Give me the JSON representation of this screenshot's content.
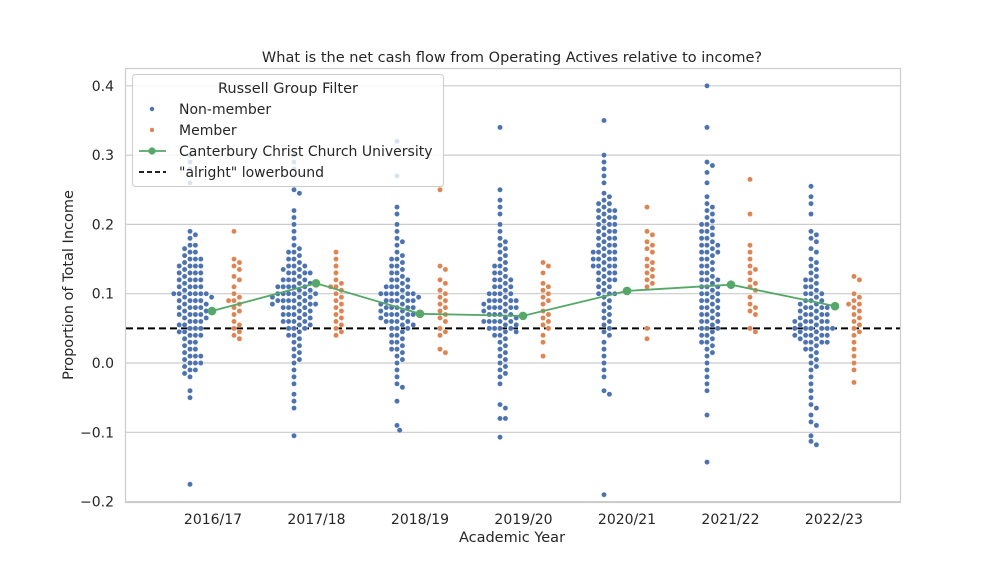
{
  "chart_data": {
    "type": "scatter",
    "subtype": "swarm",
    "title": "What is the net cash flow from Operating Actives relative to income?",
    "xlabel": "Academic Year",
    "ylabel": "Proportion of Total Income",
    "categories": [
      "2016/17",
      "2017/18",
      "2018/19",
      "2019/20",
      "2020/21",
      "2021/22",
      "2022/23"
    ],
    "ylim": [
      -0.2,
      0.42
    ],
    "yticks": [
      -0.2,
      -0.1,
      0.0,
      0.1,
      0.2,
      0.3,
      0.4
    ],
    "ytick_labels": [
      "−0.2",
      "−0.1",
      "0.0",
      "0.1",
      "0.2",
      "0.3",
      "0.4"
    ],
    "grid": true,
    "legend": {
      "title": "Russell Group Filter",
      "position": "upper left",
      "entries": [
        "Non-member",
        "Member",
        "Canterbury Christ Church University",
        "\"alright\" lowerbound"
      ]
    },
    "colors": {
      "non_member": "#4c72b0",
      "member": "#dd8452",
      "cccu": "#55a868",
      "lowerbound": "#000000",
      "grid": "#cccccc",
      "frame": "#cccccc"
    },
    "series": [
      {
        "name": "Canterbury Christ Church University",
        "type": "line",
        "values": [
          0.075,
          0.115,
          0.071,
          0.068,
          0.104,
          0.113,
          0.082
        ]
      },
      {
        "name": "\"alright\" lowerbound",
        "type": "hline",
        "value": 0.05
      },
      {
        "name": "Non-member",
        "type": "swarm",
        "values_by_year": [
          [
            0.3,
            0.29,
            0.28,
            0.26,
            0.19,
            0.185,
            0.18,
            0.17,
            0.165,
            0.16,
            0.155,
            0.15,
            0.15,
            0.145,
            0.14,
            0.14,
            0.135,
            0.13,
            0.13,
            0.125,
            0.12,
            0.12,
            0.115,
            0.11,
            0.11,
            0.105,
            0.1,
            0.1,
            0.1,
            0.1,
            0.095,
            0.095,
            0.09,
            0.09,
            0.085,
            0.085,
            0.08,
            0.08,
            0.075,
            0.075,
            0.07,
            0.07,
            0.065,
            0.065,
            0.06,
            0.06,
            0.055,
            0.055,
            0.05,
            0.05,
            0.045,
            0.045,
            0.04,
            0.04,
            0.035,
            0.03,
            0.025,
            0.02,
            0.015,
            0.01,
            0.005,
            0.0,
            -0.005,
            -0.01,
            -0.015,
            -0.02,
            -0.04,
            -0.05,
            -0.175,
            0.07,
            0.08,
            0.09,
            0.1,
            0.11,
            0.12,
            0.13,
            0.14,
            0.15,
            0.16,
            0.17,
            0.0,
            0.01,
            0.02,
            0.03,
            0.04,
            0.05,
            0.06,
            0.07,
            0.08,
            0.09,
            0.1,
            0.11,
            0.12,
            0.13,
            0.14,
            -0.01,
            0.0,
            0.01
          ],
          [
            0.3,
            0.29,
            0.28,
            0.25,
            0.245,
            0.22,
            0.21,
            0.2,
            0.19,
            0.18,
            0.17,
            0.165,
            0.16,
            0.155,
            0.15,
            0.145,
            0.14,
            0.14,
            0.135,
            0.135,
            0.13,
            0.13,
            0.125,
            0.12,
            0.12,
            0.115,
            0.11,
            0.11,
            0.105,
            0.1,
            0.1,
            0.1,
            0.095,
            0.095,
            0.09,
            0.09,
            0.085,
            0.085,
            0.085,
            0.08,
            0.08,
            0.075,
            0.075,
            0.07,
            0.07,
            0.065,
            0.065,
            0.06,
            0.06,
            0.055,
            0.055,
            0.05,
            0.05,
            0.045,
            0.04,
            0.035,
            0.03,
            0.025,
            0.02,
            0.015,
            0.01,
            0.005,
            0.0,
            -0.01,
            -0.02,
            -0.03,
            -0.045,
            -0.055,
            -0.065,
            -0.105,
            0.07,
            0.08,
            0.09,
            0.1,
            0.11,
            0.12,
            0.13,
            0.14,
            0.15,
            0.16,
            0.06,
            0.07,
            0.08,
            0.09,
            0.1,
            0.11,
            0.12,
            0.13,
            0.09,
            0.1,
            0.11,
            0.04,
            0.05,
            0.06,
            0.085,
            0.095,
            0.105,
            0.115
          ],
          [
            0.32,
            0.27,
            0.225,
            0.215,
            0.2,
            0.19,
            0.18,
            0.175,
            0.17,
            0.16,
            0.155,
            0.15,
            0.145,
            0.14,
            0.135,
            0.13,
            0.125,
            0.12,
            0.12,
            0.115,
            0.11,
            0.11,
            0.105,
            0.1,
            0.1,
            0.1,
            0.095,
            0.095,
            0.09,
            0.09,
            0.085,
            0.085,
            0.08,
            0.08,
            0.075,
            0.075,
            0.07,
            0.07,
            0.065,
            0.065,
            0.06,
            0.06,
            0.055,
            0.055,
            0.05,
            0.05,
            0.045,
            0.04,
            0.035,
            0.03,
            0.025,
            0.02,
            0.015,
            0.01,
            0.005,
            0.0,
            -0.01,
            -0.02,
            -0.03,
            -0.035,
            -0.055,
            -0.09,
            -0.097,
            0.06,
            0.07,
            0.08,
            0.09,
            0.1,
            0.11,
            0.12,
            0.13,
            0.14,
            0.15,
            0.07,
            0.08,
            0.09,
            0.1,
            0.11,
            0.03,
            0.04,
            0.05,
            0.06,
            0.07,
            0.08,
            0.09,
            0.1,
            0.02
          ],
          [
            0.34,
            0.25,
            0.235,
            0.225,
            0.215,
            0.2,
            0.19,
            0.18,
            0.175,
            0.17,
            0.165,
            0.16,
            0.155,
            0.15,
            0.145,
            0.14,
            0.135,
            0.13,
            0.125,
            0.12,
            0.115,
            0.11,
            0.105,
            0.1,
            0.1,
            0.095,
            0.09,
            0.09,
            0.085,
            0.085,
            0.08,
            0.08,
            0.075,
            0.075,
            0.07,
            0.07,
            0.065,
            0.065,
            0.06,
            0.06,
            0.055,
            0.055,
            0.05,
            0.05,
            0.045,
            0.045,
            0.04,
            0.035,
            0.03,
            0.025,
            0.02,
            0.015,
            0.01,
            0.005,
            0.0,
            -0.005,
            -0.01,
            -0.015,
            -0.02,
            -0.03,
            -0.06,
            -0.065,
            -0.08,
            -0.08,
            -0.107,
            0.06,
            0.07,
            0.08,
            0.09,
            0.1,
            0.11,
            0.12,
            0.13,
            0.14,
            0.08,
            0.09,
            0.1,
            0.11,
            0.12,
            0.05,
            0.06,
            0.07,
            0.08,
            0.09,
            0.04,
            0.05,
            0.06
          ],
          [
            0.35,
            0.3,
            0.29,
            0.28,
            0.27,
            0.26,
            0.245,
            0.24,
            0.235,
            0.23,
            0.225,
            0.22,
            0.215,
            0.21,
            0.205,
            0.2,
            0.195,
            0.19,
            0.185,
            0.18,
            0.175,
            0.17,
            0.165,
            0.16,
            0.155,
            0.15,
            0.145,
            0.14,
            0.135,
            0.13,
            0.125,
            0.12,
            0.115,
            0.11,
            0.105,
            0.1,
            0.1,
            0.095,
            0.09,
            0.085,
            0.08,
            0.075,
            0.07,
            0.065,
            0.06,
            0.055,
            0.05,
            0.045,
            0.04,
            0.03,
            0.02,
            0.01,
            0.0,
            -0.01,
            -0.02,
            -0.04,
            -0.045,
            -0.19,
            0.18,
            0.19,
            0.2,
            0.21,
            0.22,
            0.23,
            0.17,
            0.16,
            0.15,
            0.14,
            0.13,
            0.12,
            0.11,
            0.1,
            0.2,
            0.19,
            0.18,
            0.17,
            0.16,
            0.15,
            0.14,
            0.13,
            0.12,
            0.21,
            0.22,
            0.16,
            0.15,
            0.14
          ],
          [
            0.4,
            0.34,
            0.29,
            0.285,
            0.275,
            0.26,
            0.24,
            0.23,
            0.225,
            0.22,
            0.215,
            0.21,
            0.205,
            0.2,
            0.195,
            0.19,
            0.185,
            0.18,
            0.175,
            0.17,
            0.165,
            0.16,
            0.155,
            0.15,
            0.145,
            0.14,
            0.135,
            0.13,
            0.125,
            0.12,
            0.115,
            0.11,
            0.105,
            0.1,
            0.095,
            0.09,
            0.085,
            0.08,
            0.075,
            0.07,
            0.065,
            0.06,
            0.055,
            0.05,
            0.045,
            0.04,
            0.035,
            0.03,
            0.025,
            0.02,
            0.015,
            0.01,
            0.0,
            -0.01,
            -0.02,
            -0.03,
            -0.04,
            -0.075,
            -0.143,
            0.16,
            0.17,
            0.18,
            0.19,
            0.2,
            0.14,
            0.15,
            0.16,
            0.17,
            0.13,
            0.12,
            0.11,
            0.1,
            0.09,
            0.08,
            0.07,
            0.06,
            0.05,
            0.04,
            0.03,
            0.12,
            0.11,
            0.1,
            0.09,
            0.08,
            0.07,
            0.06,
            0.05
          ],
          [
            0.255,
            0.24,
            0.23,
            0.215,
            0.19,
            0.185,
            0.18,
            0.175,
            0.165,
            0.16,
            0.15,
            0.145,
            0.14,
            0.135,
            0.13,
            0.125,
            0.12,
            0.115,
            0.11,
            0.105,
            0.1,
            0.1,
            0.095,
            0.09,
            0.085,
            0.085,
            0.08,
            0.08,
            0.075,
            0.075,
            0.07,
            0.07,
            0.065,
            0.065,
            0.06,
            0.06,
            0.055,
            0.055,
            0.05,
            0.05,
            0.05,
            0.045,
            0.045,
            0.04,
            0.04,
            0.035,
            0.035,
            0.03,
            0.03,
            0.025,
            0.02,
            0.015,
            0.01,
            0.005,
            0.0,
            -0.005,
            -0.01,
            -0.02,
            -0.03,
            -0.04,
            -0.05,
            -0.06,
            -0.065,
            -0.075,
            -0.085,
            -0.09,
            -0.105,
            -0.113,
            -0.118,
            0.05,
            0.06,
            0.07,
            0.08,
            0.09,
            0.1,
            0.11,
            0.12,
            0.04,
            0.05,
            0.06,
            0.07,
            0.08,
            0.09,
            0.03,
            0.04,
            0.05,
            0.06,
            0.02,
            0.03,
            0.04
          ]
        ]
      },
      {
        "name": "Member",
        "type": "swarm",
        "values_by_year": [
          [
            0.19,
            0.15,
            0.145,
            0.14,
            0.135,
            0.125,
            0.12,
            0.11,
            0.1,
            0.095,
            0.09,
            0.09,
            0.085,
            0.08,
            0.075,
            0.07,
            0.06,
            0.055,
            0.05,
            0.045,
            0.04,
            0.035
          ],
          [
            0.16,
            0.15,
            0.14,
            0.13,
            0.12,
            0.115,
            0.11,
            0.11,
            0.105,
            0.1,
            0.095,
            0.09,
            0.085,
            0.08,
            0.075,
            0.07,
            0.065,
            0.06,
            0.055,
            0.05,
            0.045,
            0.04
          ],
          [
            0.25,
            0.14,
            0.135,
            0.12,
            0.115,
            0.105,
            0.1,
            0.095,
            0.09,
            0.085,
            0.08,
            0.075,
            0.07,
            0.065,
            0.06,
            0.05,
            0.045,
            0.04,
            0.02,
            0.015
          ],
          [
            0.145,
            0.14,
            0.13,
            0.115,
            0.11,
            0.105,
            0.1,
            0.095,
            0.09,
            0.085,
            0.075,
            0.07,
            0.065,
            0.06,
            0.055,
            0.05,
            0.04,
            0.03,
            0.01
          ],
          [
            0.225,
            0.19,
            0.185,
            0.175,
            0.17,
            0.165,
            0.16,
            0.15,
            0.145,
            0.14,
            0.135,
            0.13,
            0.125,
            0.12,
            0.115,
            0.11,
            0.05,
            0.035
          ],
          [
            0.265,
            0.215,
            0.17,
            0.16,
            0.15,
            0.14,
            0.135,
            0.13,
            0.12,
            0.115,
            0.11,
            0.105,
            0.095,
            0.085,
            0.08,
            0.075,
            0.07,
            0.05,
            0.045
          ],
          [
            0.125,
            0.12,
            0.1,
            0.095,
            0.09,
            0.085,
            0.085,
            0.08,
            0.075,
            0.07,
            0.065,
            0.06,
            0.055,
            0.05,
            0.045,
            0.04,
            0.03,
            0.02,
            0.01,
            0.0,
            -0.01,
            -0.028
          ]
        ]
      }
    ]
  }
}
